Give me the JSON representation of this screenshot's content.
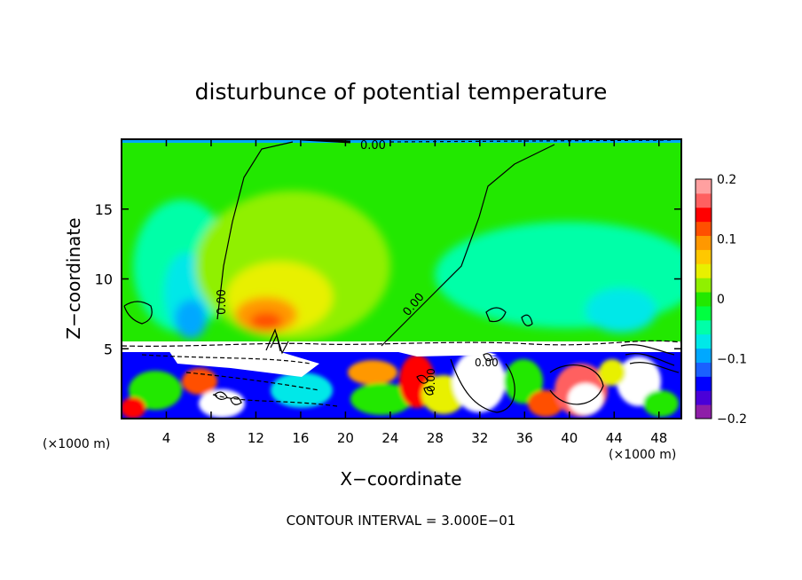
{
  "chart_data": {
    "type": "heatmap",
    "title": "disturbunce of potential temperature",
    "xlabel": "X−coordinate",
    "ylabel": "Z−coordinate",
    "x_unit_left": "(×1000 m)",
    "x_unit_right": "(×1000 m)",
    "xlim": [
      0,
      50
    ],
    "ylim": [
      0,
      20
    ],
    "x_ticks": [
      "4",
      "8",
      "12",
      "16",
      "20",
      "24",
      "28",
      "32",
      "36",
      "40",
      "44",
      "48"
    ],
    "y_ticks": [
      "5",
      "10",
      "15"
    ],
    "colorbar": {
      "range": [
        -0.2,
        0.2
      ],
      "tick_labels": [
        "0.2",
        "0.1",
        "0",
        "−0.1",
        "−0.2"
      ],
      "colors": [
        "#8e1ea8",
        "#4a00d8",
        "#0000ff",
        "#1a60ff",
        "#00a8ff",
        "#00e8e8",
        "#00ffa8",
        "#00ff40",
        "#22e800",
        "#90f000",
        "#e8f000",
        "#ffc800",
        "#ff9800",
        "#ff5000",
        "#ff0000",
        "#ff6060",
        "#ffa0a0"
      ]
    },
    "contour_labels": [
      "0.00",
      "0.00",
      "0.00",
      "0.00",
      "0.00"
    ],
    "contour_interval_text": "CONTOUR INTERVAL = 3.000E−01",
    "grid": false,
    "legend": "right colorbar"
  }
}
